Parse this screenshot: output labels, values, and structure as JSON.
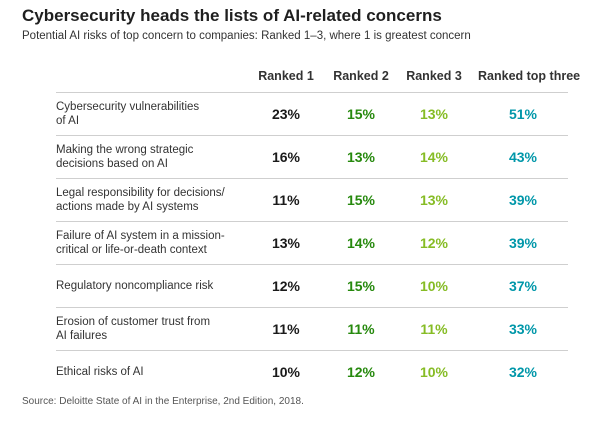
{
  "title": "Cybersecurity heads the lists of AI-related concerns",
  "subtitle": "Potential AI risks of top concern to companies: Ranked 1–3, where 1 is greatest concern",
  "source": "Source: Deloitte State of AI in the Enterprise, 2nd Edition, 2018.",
  "colors": {
    "ranked_1": "#1a1a1a",
    "ranked_2": "#26890d",
    "ranked_3": "#86bc25",
    "ranked_top_three": "#0097a9"
  },
  "chart_data": {
    "type": "table",
    "columns": [
      "Ranked 1",
      "Ranked 2",
      "Ranked 3",
      "Ranked top three"
    ],
    "rows": [
      {
        "label": "Cybersecurity vulnerabilities\nof AI",
        "values": [
          "23%",
          "15%",
          "13%",
          "51%"
        ]
      },
      {
        "label": "Making the wrong strategic\ndecisions based on AI",
        "values": [
          "16%",
          "13%",
          "14%",
          "43%"
        ]
      },
      {
        "label": "Legal responsibility for decisions/\nactions made by AI systems",
        "values": [
          "11%",
          "15%",
          "13%",
          "39%"
        ]
      },
      {
        "label": "Failure of AI system in a mission-\ncritical or life-or-death context",
        "values": [
          "13%",
          "14%",
          "12%",
          "39%"
        ]
      },
      {
        "label": "Regulatory noncompliance risk",
        "values": [
          "12%",
          "15%",
          "10%",
          "37%"
        ]
      },
      {
        "label": "Erosion of customer trust from\nAI failures",
        "values": [
          "11%",
          "11%",
          "11%",
          "33%"
        ]
      },
      {
        "label": "Ethical risks of AI",
        "values": [
          "10%",
          "12%",
          "10%",
          "32%"
        ]
      }
    ]
  }
}
